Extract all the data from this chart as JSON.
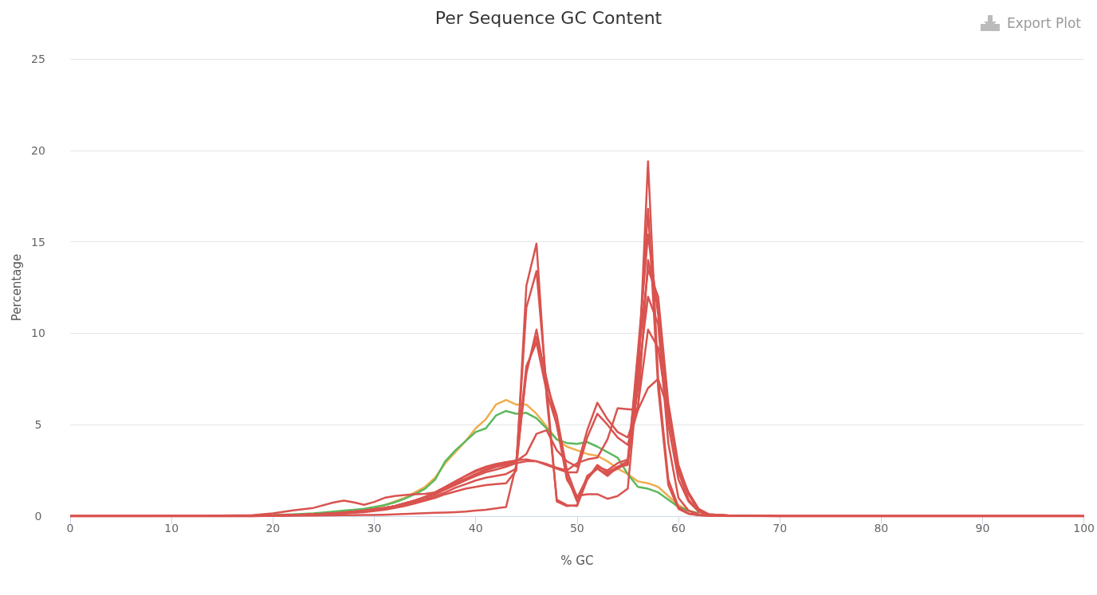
{
  "chart_data": {
    "type": "line",
    "title": "Per Sequence GC Content",
    "xlabel": "% GC",
    "ylabel": "Percentage",
    "annotations": [
      "Export Plot"
    ],
    "x": [
      0,
      10,
      15,
      18,
      20,
      22,
      24,
      26,
      27,
      28,
      29,
      30,
      31,
      32,
      33,
      34,
      35,
      36,
      37,
      38,
      39,
      40,
      41,
      42,
      43,
      44,
      45,
      46,
      47,
      48,
      49,
      50,
      51,
      52,
      53,
      54,
      55,
      56,
      57,
      58,
      59,
      60,
      61,
      62,
      63,
      65,
      70,
      80,
      100
    ],
    "series": [
      {
        "color": "#f0ad4e",
        "values": [
          null,
          null,
          null,
          null,
          null,
          null,
          null,
          null,
          null,
          null,
          null,
          0.45,
          0.6,
          0.8,
          1.0,
          1.3,
          1.6,
          2.1,
          2.9,
          3.5,
          4.1,
          4.8,
          5.3,
          6.1,
          6.35,
          6.1,
          6.1,
          5.6,
          4.9,
          4.2,
          3.8,
          3.6,
          3.4,
          3.3,
          3.0,
          2.6,
          2.3,
          1.9,
          1.8,
          1.6,
          1.1,
          0.6,
          0.3,
          0.15,
          null,
          null,
          null,
          null,
          null
        ]
      },
      {
        "color": "#5cb85c",
        "values": [
          null,
          null,
          null,
          null,
          0.06,
          0.1,
          0.15,
          0.25,
          0.3,
          0.35,
          0.4,
          0.5,
          0.6,
          0.75,
          0.95,
          1.2,
          1.5,
          2.0,
          3.0,
          3.6,
          4.1,
          4.6,
          4.8,
          5.5,
          5.75,
          5.6,
          5.65,
          5.35,
          4.8,
          4.2,
          4.0,
          3.95,
          4.05,
          3.8,
          3.5,
          3.2,
          2.3,
          1.6,
          1.5,
          1.3,
          0.9,
          0.5,
          0.3,
          0.15,
          null,
          null,
          null,
          null,
          null
        ]
      },
      {
        "color": "#d9534f",
        "values": [
          0,
          0,
          0,
          0,
          0.02,
          0.05,
          0.08,
          0.12,
          0.15,
          0.18,
          0.22,
          0.28,
          0.35,
          0.45,
          0.55,
          0.7,
          0.85,
          1.0,
          1.2,
          1.35,
          1.5,
          1.6,
          1.7,
          1.75,
          1.8,
          2.5,
          12.6,
          14.9,
          6.5,
          0.9,
          0.6,
          0.55,
          2.0,
          2.8,
          2.4,
          2.7,
          3.0,
          7.0,
          19.4,
          7.5,
          2.0,
          0.5,
          0.15,
          0.05,
          0.02,
          0,
          0,
          0,
          0
        ]
      },
      {
        "color": "#d9534f",
        "values": [
          0,
          0,
          0,
          0,
          0.01,
          0.02,
          0.03,
          0.04,
          0.05,
          0.05,
          0.06,
          0.07,
          0.08,
          0.1,
          0.12,
          0.14,
          0.16,
          0.18,
          0.2,
          0.22,
          0.25,
          0.3,
          0.35,
          0.42,
          0.5,
          2.8,
          11.4,
          13.4,
          7.0,
          0.8,
          0.55,
          0.6,
          2.2,
          2.6,
          2.3,
          2.6,
          2.9,
          8.0,
          16.8,
          7.0,
          1.7,
          0.4,
          0.12,
          0.05,
          0.02,
          0,
          0,
          0,
          0
        ]
      },
      {
        "color": "#d9534f",
        "values": [
          0,
          0,
          0,
          0,
          0.03,
          0.06,
          0.1,
          0.15,
          0.2,
          0.25,
          0.3,
          0.38,
          0.45,
          0.55,
          0.7,
          0.85,
          1.0,
          1.2,
          1.45,
          1.7,
          1.95,
          2.2,
          2.4,
          2.55,
          2.7,
          2.9,
          7.8,
          10.2,
          7.2,
          5.5,
          2.5,
          1.0,
          2.1,
          2.6,
          2.2,
          2.7,
          2.8,
          9.0,
          15.4,
          11.0,
          5.9,
          2.4,
          0.9,
          0.25,
          0.08,
          0.02,
          0,
          0,
          0
        ]
      },
      {
        "color": "#d9534f",
        "values": [
          0,
          0,
          0,
          0,
          0.03,
          0.06,
          0.1,
          0.15,
          0.2,
          0.25,
          0.3,
          0.38,
          0.45,
          0.55,
          0.7,
          0.85,
          1.05,
          1.25,
          1.5,
          1.8,
          2.05,
          2.3,
          2.5,
          2.7,
          2.85,
          3.0,
          8.2,
          9.5,
          6.8,
          5.0,
          2.2,
          0.8,
          2.0,
          2.7,
          2.5,
          2.9,
          3.1,
          8.5,
          13.5,
          12.0,
          6.2,
          2.8,
          1.2,
          0.3,
          0.1,
          0.03,
          0,
          0,
          0
        ]
      },
      {
        "color": "#d9534f",
        "values": [
          0,
          0,
          0,
          0,
          0.03,
          0.06,
          0.1,
          0.15,
          0.2,
          0.25,
          0.3,
          0.38,
          0.45,
          0.55,
          0.7,
          0.85,
          1.05,
          1.3,
          1.6,
          1.9,
          2.2,
          2.5,
          2.7,
          2.85,
          2.95,
          3.0,
          3.4,
          4.5,
          4.7,
          3.6,
          3.0,
          2.7,
          4.7,
          6.2,
          5.3,
          4.6,
          4.3,
          6.0,
          10.2,
          9.2,
          5.5,
          2.7,
          1.2,
          0.3,
          0.1,
          0.03,
          0,
          0,
          0
        ]
      },
      {
        "color": "#d9534f",
        "values": [
          0,
          0,
          0,
          0,
          0.03,
          0.06,
          0.1,
          0.15,
          0.2,
          0.25,
          0.3,
          0.38,
          0.45,
          0.55,
          0.7,
          0.85,
          1.05,
          1.3,
          1.6,
          1.9,
          2.2,
          2.45,
          2.65,
          2.8,
          2.95,
          3.05,
          3.1,
          3.0,
          2.8,
          2.6,
          2.4,
          2.4,
          4.3,
          5.6,
          5.0,
          4.3,
          3.9,
          5.8,
          7.0,
          7.5,
          5.8,
          2.6,
          1.3,
          0.4,
          0.1,
          0.03,
          0,
          0,
          0
        ]
      },
      {
        "color": "#d9534f",
        "values": [
          0,
          0.02,
          0.03,
          0.05,
          0.15,
          0.32,
          0.45,
          0.75,
          0.85,
          0.75,
          0.62,
          0.78,
          1.0,
          1.1,
          1.15,
          1.2,
          1.22,
          1.3,
          1.5,
          1.75,
          2.0,
          2.3,
          2.55,
          2.7,
          2.8,
          2.9,
          3.0,
          3.0,
          2.85,
          2.65,
          2.5,
          2.9,
          3.1,
          3.2,
          4.2,
          5.9,
          5.85,
          5.8,
          14.0,
          11.5,
          5.0,
          2.0,
          0.8,
          0.25,
          0.08,
          0.03,
          0,
          0,
          0
        ]
      },
      {
        "color": "#d9534f",
        "values": [
          0,
          0,
          0,
          0,
          0.02,
          0.05,
          0.08,
          0.12,
          0.15,
          0.2,
          0.25,
          0.3,
          0.38,
          0.48,
          0.6,
          0.75,
          0.9,
          1.1,
          1.3,
          1.55,
          1.75,
          1.95,
          2.1,
          2.2,
          2.3,
          2.6,
          8.0,
          9.8,
          7.5,
          5.0,
          2.0,
          1.1,
          1.2,
          1.2,
          0.95,
          1.1,
          1.5,
          7.5,
          12.0,
          10.5,
          4.0,
          1.0,
          0.3,
          0.1,
          0.03,
          0.01,
          0,
          0,
          0
        ]
      }
    ],
    "xlim": [
      0,
      100
    ],
    "xticks": [
      0,
      10,
      20,
      30,
      40,
      50,
      60,
      70,
      80,
      90,
      100
    ],
    "ylim": [
      0,
      25
    ],
    "yticks": [
      0,
      5,
      10,
      15,
      20,
      25
    ],
    "grid": "y",
    "marker": "none",
    "line_style": "solid"
  }
}
